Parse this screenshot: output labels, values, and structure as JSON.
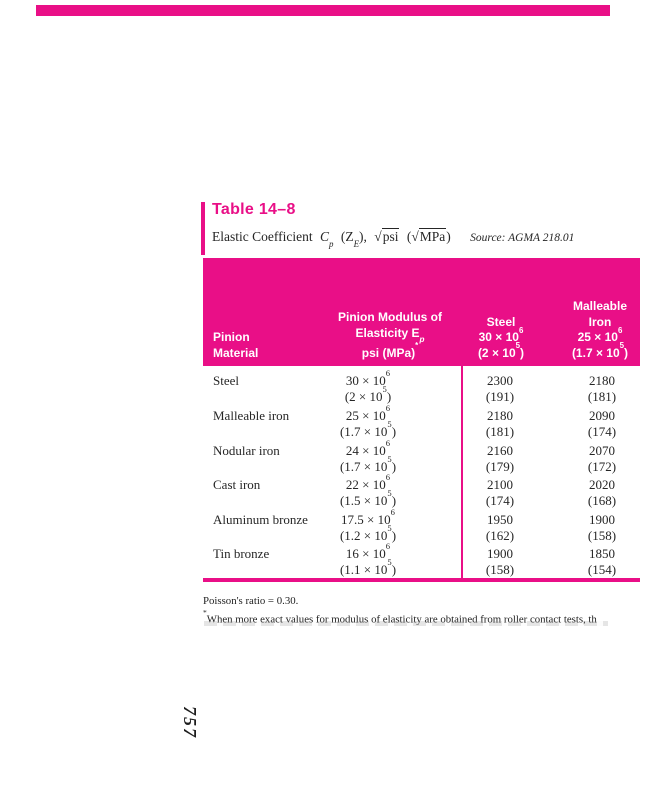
{
  "page": {
    "accent_color": "#E90F87",
    "folio": "757"
  },
  "table": {
    "title": "Table 14–8",
    "caption": {
      "lead": "Elastic Coefficient",
      "cp_main": "C",
      "cp_sub": "p",
      "z_open": "(",
      "z_main": "Z",
      "z_sub": "E",
      "z_close": "),",
      "sqrt_sign": "√",
      "unit_psi": "psi",
      "paren_open": "(",
      "sqrt_sign2": "√",
      "unit_mpa": "MPa",
      "paren_close": ")",
      "source": "Source: AGMA 218.01"
    },
    "header": {
      "col1": [
        "Pinion",
        "Material"
      ],
      "col2": {
        "line1": "Pinion Modulus of",
        "line2_main": "Elasticity E",
        "line2_sub": "p",
        "line3_main": "psi (MPa)",
        "line3_sup": "*"
      },
      "col3": [
        "Steel",
        "30 × 10⁶",
        "(2 × 10⁵)"
      ],
      "col4": [
        "Malleable",
        "Iron",
        "25 × 10⁶",
        "(1.7 × 10⁵)"
      ]
    },
    "rows": [
      {
        "material": "Steel",
        "modulus": [
          "30 × 10⁶",
          "(2 × 10⁵)"
        ],
        "steel": [
          "2300",
          "(191)"
        ],
        "malleable_iron": [
          "2180",
          "(181)"
        ]
      },
      {
        "material": "Malleable iron",
        "modulus": [
          "25 × 10⁶",
          "(1.7 × 10⁵)"
        ],
        "steel": [
          "2180",
          "(181)"
        ],
        "malleable_iron": [
          "2090",
          "(174)"
        ]
      },
      {
        "material": "Nodular iron",
        "modulus": [
          "24 × 10⁶",
          "(1.7 × 10⁵)"
        ],
        "steel": [
          "2160",
          "(179)"
        ],
        "malleable_iron": [
          "2070",
          "(172)"
        ]
      },
      {
        "material": "Cast iron",
        "modulus": [
          "22 × 10⁶",
          "(1.5 × 10⁵)"
        ],
        "steel": [
          "2100",
          "(174)"
        ],
        "malleable_iron": [
          "2020",
          "(168)"
        ]
      },
      {
        "material": "Aluminum bronze",
        "modulus": [
          "17.5 × 10⁶",
          "(1.2 × 10⁵)"
        ],
        "steel": [
          "1950",
          "(162)"
        ],
        "malleable_iron": [
          "1900",
          "(158)"
        ]
      },
      {
        "material": "Tin bronze",
        "modulus": [
          "16 × 10⁶",
          "(1.1 × 10⁵)"
        ],
        "steel": [
          "1900",
          "(158)"
        ],
        "malleable_iron": [
          "1850",
          "(154)"
        ]
      }
    ]
  },
  "footnotes": {
    "poisson": "Poisson's ratio = 0.30.",
    "marker": "*",
    "note": "When more exact values for modulus of elasticity are obtained from roller contact tests, th"
  }
}
